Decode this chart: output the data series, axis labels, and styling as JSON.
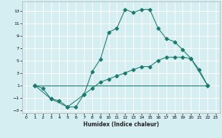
{
  "xlabel": "Humidex (Indice chaleur)",
  "bg_color": "#d4eef1",
  "grid_color": "#ffffff",
  "line_color": "#1e7a6e",
  "xlim": [
    -0.5,
    23.5
  ],
  "ylim": [
    -3.5,
    14.5
  ],
  "xticks": [
    0,
    1,
    2,
    3,
    4,
    5,
    6,
    7,
    8,
    9,
    10,
    11,
    12,
    13,
    14,
    15,
    16,
    17,
    18,
    19,
    20,
    21,
    22,
    23
  ],
  "yticks": [
    -3,
    -1,
    1,
    3,
    5,
    7,
    9,
    11,
    13
  ],
  "line1_x": [
    1,
    2,
    3,
    4,
    5,
    6,
    7,
    8,
    9,
    10,
    11,
    12,
    13,
    14,
    15,
    16,
    17,
    18,
    19,
    20,
    21,
    22
  ],
  "line1_y": [
    1,
    0.5,
    -1.2,
    -1.5,
    -2.5,
    -2.5,
    -0.5,
    3.2,
    5.2,
    9.5,
    10.2,
    13.2,
    12.7,
    13.2,
    13.2,
    10.2,
    8.5,
    8.0,
    6.7,
    5.3,
    3.5,
    1.0
  ],
  "line2_x": [
    1,
    22
  ],
  "line2_y": [
    1,
    1
  ],
  "line3_x": [
    1,
    3,
    5,
    7,
    8,
    9,
    10,
    11,
    12,
    13,
    14,
    15,
    16,
    17,
    18,
    19,
    20,
    22
  ],
  "line3_y": [
    1,
    -1.2,
    -2.5,
    -0.5,
    0.5,
    1.5,
    2.0,
    2.5,
    3.0,
    3.5,
    4.0,
    4.0,
    5.0,
    5.5,
    5.5,
    5.5,
    5.3,
    1.0
  ],
  "markersize": 2.5
}
